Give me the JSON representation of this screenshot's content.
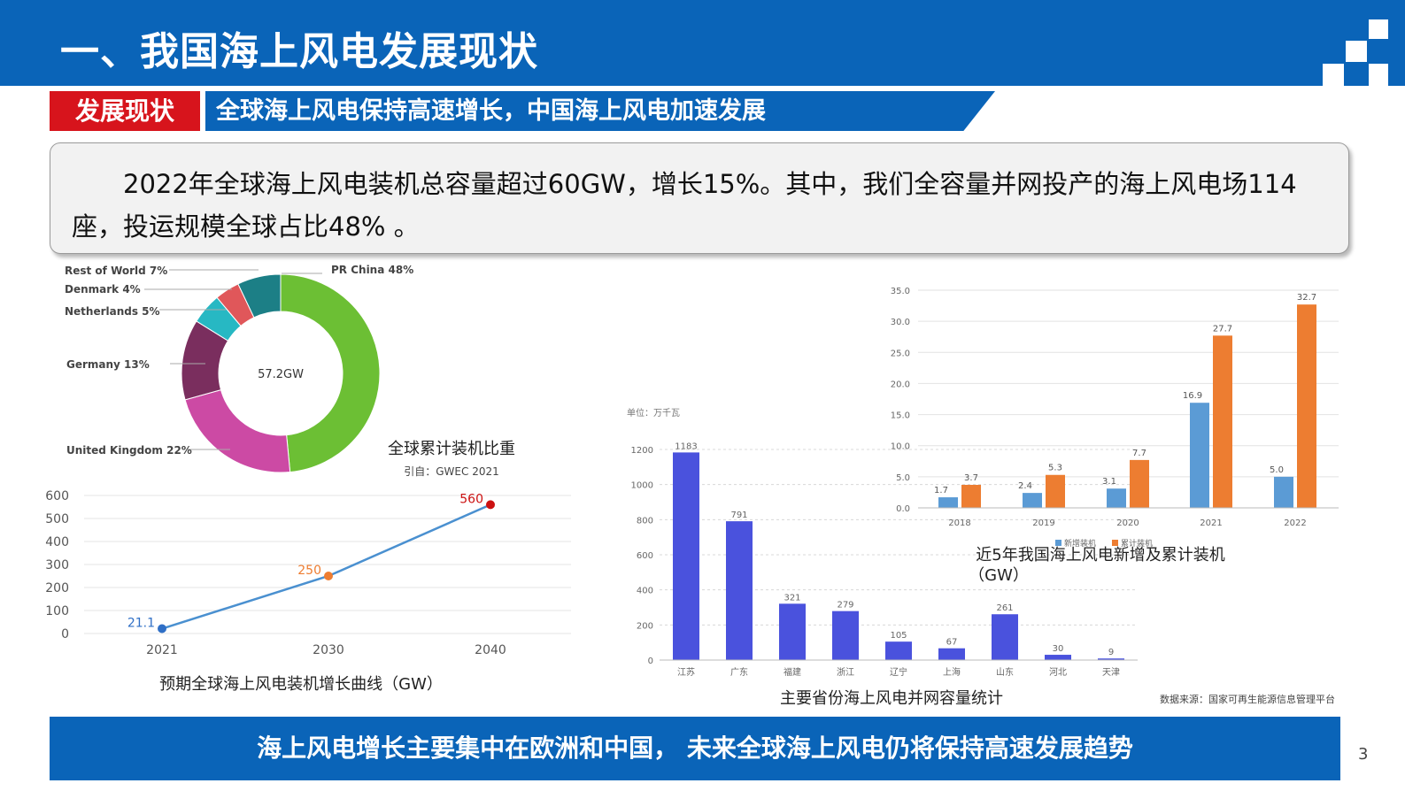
{
  "page": {
    "title": "一、我国海上风电发展现状",
    "tag": "发展现状",
    "banner": "全球海上风电保持高速增长，中国海上风电加速发展",
    "summary": "2022年全球海上风电装机总容量超过60GW，增长15%。其中，我们全容量并网投产的海上风电场114座，投运规模全球占比48% 。",
    "footer": "海上风电增长主要集中在欧洲和中国， 未来全球海上风电仍将保持高速发展趋势",
    "page_number": "3",
    "source_note": "数据来源：国家可再生能源信息管理平台"
  },
  "colors": {
    "brand_blue": "#0a64b8",
    "tag_red": "#d7141c"
  },
  "chart_data": [
    {
      "type": "pie",
      "subtype": "donut",
      "title": "全球累计装机比重",
      "subtitle": "引自：GWEC 2021",
      "center_label": "57.2GW",
      "slices": [
        {
          "label": "PR China 48%",
          "value": 48,
          "color": "#6cbf34"
        },
        {
          "label": "United Kingdom 22%",
          "value": 22,
          "color": "#cc4aa4"
        },
        {
          "label": "Germany 13%",
          "value": 13,
          "color": "#7a2e5e"
        },
        {
          "label": "Netherlands 5%",
          "value": 5,
          "color": "#27b8c3"
        },
        {
          "label": "Denmark 4%",
          "value": 4,
          "color": "#e0575a"
        },
        {
          "label": "Rest of World 7%",
          "value": 7,
          "color": "#1c7f86"
        }
      ]
    },
    {
      "type": "line",
      "title": "预期全球海上风电装机增长曲线（GW）",
      "x": [
        "2021",
        "2030",
        "2040"
      ],
      "series": [
        {
          "values": [
            21.1,
            250,
            560
          ],
          "value_labels": [
            "21.1",
            "250",
            "560"
          ],
          "point_colors": [
            "#2f6fc6",
            "#ee7d31",
            "#cc1111"
          ]
        }
      ],
      "yticks": [
        "600",
        "500",
        "400",
        "300",
        "200",
        "100",
        "0"
      ],
      "ylim": [
        0,
        600
      ],
      "line_color": "#4a90d0",
      "grid": true
    },
    {
      "type": "bar",
      "title": "主要省份海上风电并网容量统计",
      "unit_label": "单位：万千瓦",
      "categories": [
        "江苏",
        "广东",
        "福建",
        "浙江",
        "辽宁",
        "上海",
        "山东",
        "河北",
        "天津"
      ],
      "values": [
        1183,
        791,
        321,
        279,
        105,
        67,
        261,
        30,
        9
      ],
      "yticks": [
        "1200",
        "1000",
        "800",
        "600",
        "400",
        "200",
        "0"
      ],
      "ylim": [
        0,
        1200
      ],
      "bar_color": "#4a52dd",
      "grid": true
    },
    {
      "type": "bar",
      "title": "近5年我国海上风电新增及累计装机",
      "title_line2": "（GW）",
      "categories": [
        "2018",
        "2019",
        "2020",
        "2021",
        "2022"
      ],
      "series": [
        {
          "name": "新增装机",
          "values": [
            1.7,
            2.4,
            3.1,
            16.9,
            5.0
          ],
          "labels": [
            "1.7",
            "2.4",
            "3.1",
            "16.9",
            "5.0"
          ],
          "color": "#5b9bd5"
        },
        {
          "name": "累计装机",
          "values": [
            3.7,
            5.3,
            7.7,
            27.7,
            32.7
          ],
          "labels": [
            "3.7",
            "5.3",
            "7.7",
            "27.7",
            "32.7"
          ],
          "color": "#ed7d31"
        }
      ],
      "yticks": [
        "35.0",
        "30.0",
        "25.0",
        "20.0",
        "15.0",
        "10.0",
        "5.0",
        "0.0"
      ],
      "ylim": [
        0,
        35
      ],
      "legend_position": "bottom",
      "grid": true
    }
  ]
}
